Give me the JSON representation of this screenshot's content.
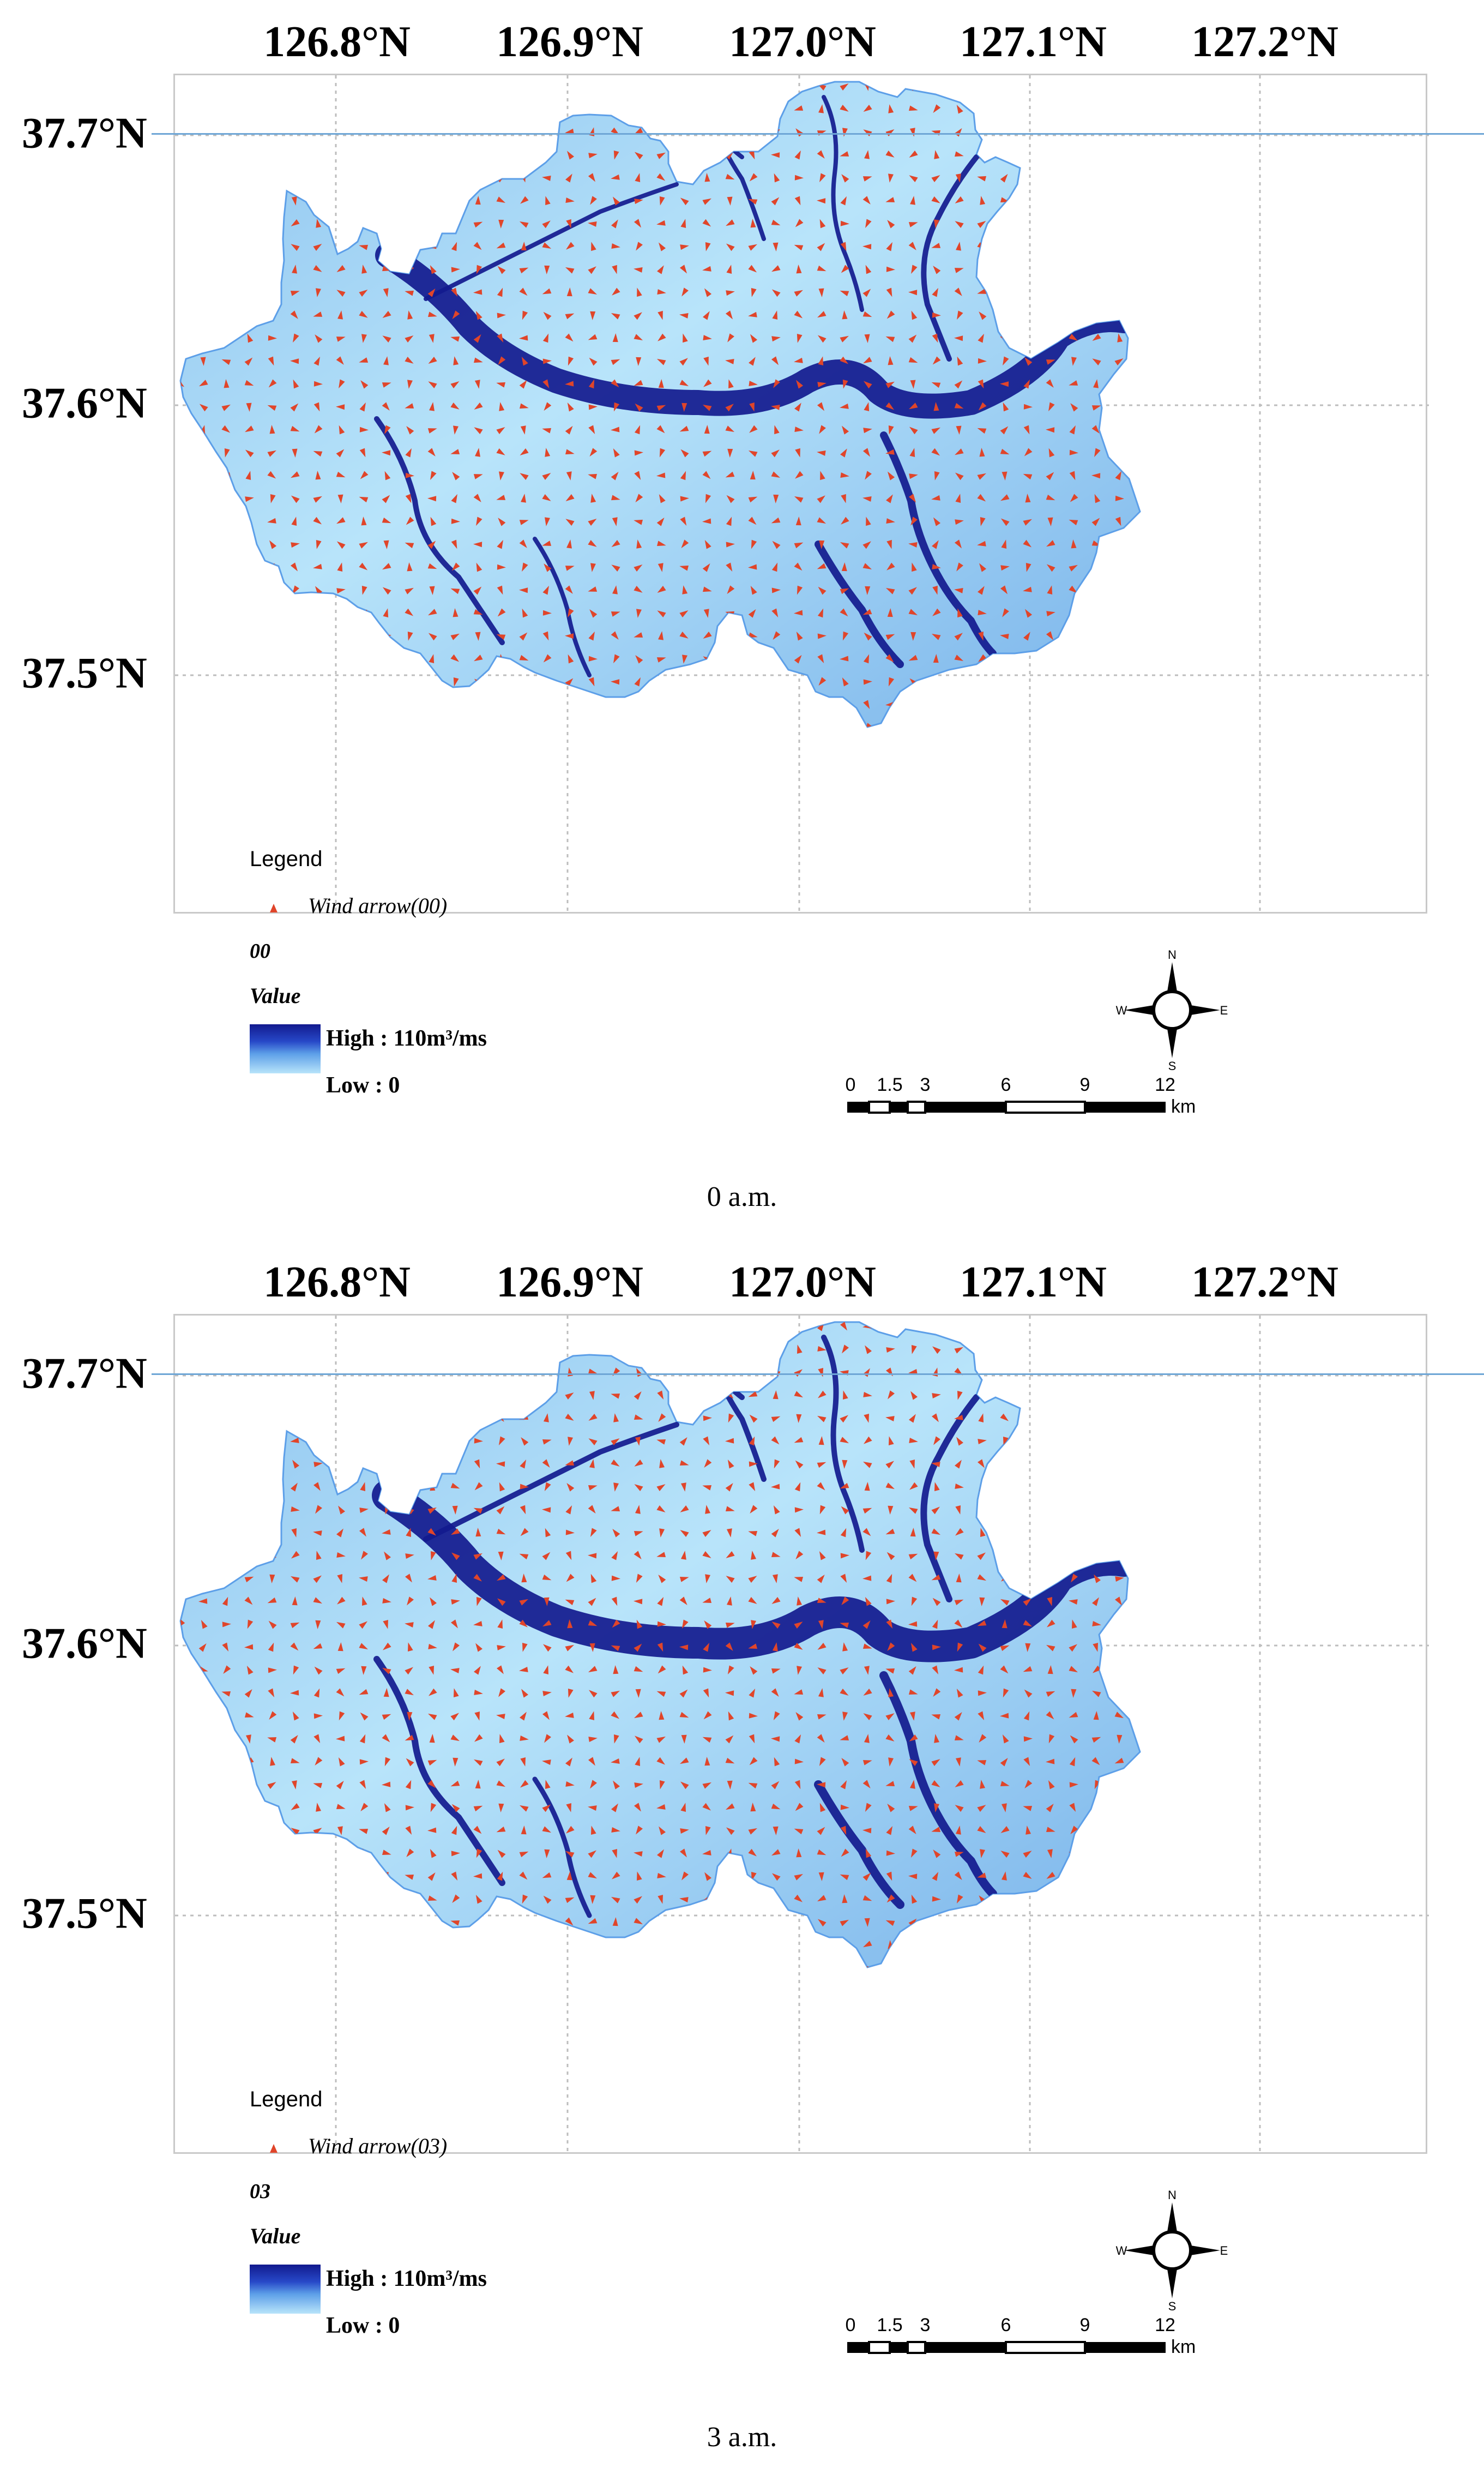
{
  "panels": [
    {
      "lon_labels": [
        "126.8°N",
        "126.9°N",
        "127.0°N",
        "127.1°N",
        "127.2°N"
      ],
      "lat_labels": [
        "37.7°N",
        "37.6°N",
        "37.5°N"
      ],
      "legend_title": "Legend",
      "wind_label": "Wind arrow(00)",
      "layer_name": "00",
      "value_label": "Value",
      "high_label": "High : 110m³/ms",
      "low_label": "Low  : 0",
      "caption": "0 a.m."
    },
    {
      "lon_labels": [
        "126.8°N",
        "126.9°N",
        "127.0°N",
        "127.1°N",
        "127.2°N"
      ],
      "lat_labels": [
        "37.7°N",
        "37.6°N",
        "37.5°N"
      ],
      "legend_title": "Legend",
      "wind_label": "Wind arrow(03)",
      "layer_name": "03",
      "value_label": "Value",
      "high_label": "High : 110m³/ms",
      "low_label": "Low  : 0",
      "caption": "3 a.m."
    }
  ],
  "scale_bar": {
    "ticks": [
      "0",
      "1.5",
      "3",
      "6",
      "9",
      "12"
    ],
    "unit": "km"
  },
  "compass": {
    "n": "N",
    "s": "S",
    "e": "E",
    "w": "W"
  },
  "colors": {
    "high": "#121a8e",
    "low": "#b8e4fa",
    "wind_arrow": "#e0452a",
    "grid": "#bdbdbd",
    "rule": "#6ea6d6"
  },
  "value_range": {
    "high": 110,
    "low": 0,
    "unit": "m³/ms"
  }
}
